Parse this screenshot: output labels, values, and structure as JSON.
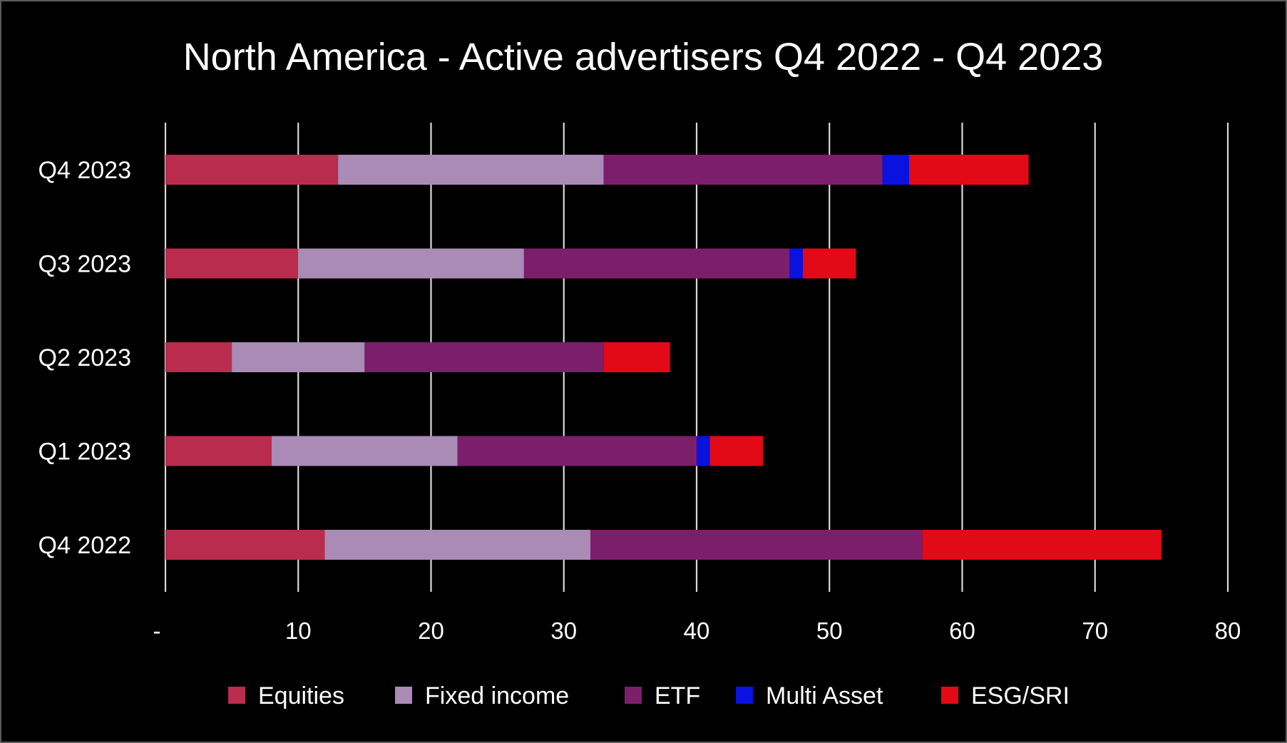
{
  "chart_data": {
    "type": "bar",
    "orientation": "horizontal",
    "stacked": true,
    "title": "North America - Active advertisers Q4 2022 - Q4 2023",
    "xlabel": "",
    "ylabel": "",
    "categories": [
      "Q4 2023",
      "Q3 2023",
      "Q2 2023",
      "Q1 2023",
      "Q4 2022"
    ],
    "series": [
      {
        "name": "Equities",
        "color": "#b92c4e",
        "values": [
          13,
          10,
          5,
          8,
          12
        ]
      },
      {
        "name": "Fixed income",
        "color": "#a98bb5",
        "values": [
          20,
          17,
          10,
          14,
          20
        ]
      },
      {
        "name": "ETF",
        "color": "#7b1f6b",
        "values": [
          21,
          20,
          18,
          18,
          25
        ]
      },
      {
        "name": "Multi Asset",
        "color": "#0a12e0",
        "values": [
          2,
          1,
          0,
          1,
          0
        ]
      },
      {
        "name": "ESG/SRI",
        "color": "#e20a16",
        "values": [
          9,
          4,
          5,
          4,
          18
        ]
      }
    ],
    "xlim": [
      0,
      80
    ],
    "xticks": [
      0,
      10,
      20,
      30,
      40,
      50,
      60,
      70,
      80
    ],
    "xtick_labels": [
      "-",
      "10",
      "20",
      "30",
      "40",
      "50",
      "60",
      "70",
      "80"
    ],
    "grid": true,
    "legend_position": "bottom",
    "colors": {
      "background": "#000000",
      "text": "#ffffff",
      "gridline": "#d9d9d9"
    }
  }
}
